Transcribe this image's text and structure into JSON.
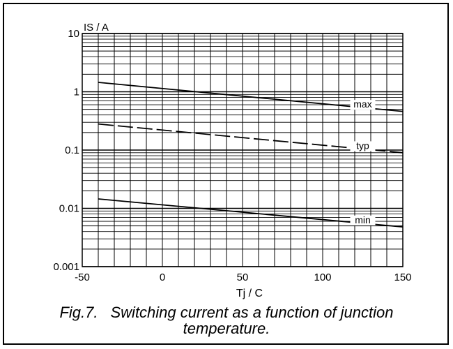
{
  "chart_data": {
    "type": "line",
    "x_scale": "linear",
    "y_scale": "log",
    "xlim": [
      -50,
      150
    ],
    "ylim": [
      0.001,
      10
    ],
    "x_ticks": [
      -50,
      0,
      50,
      100,
      150
    ],
    "x_tick_labels": [
      "-50",
      "0",
      "50",
      "100",
      "150"
    ],
    "y_ticks": [
      0.001,
      0.01,
      0.1,
      1,
      10
    ],
    "y_tick_labels": [
      "0.001",
      "0.01",
      "0.1",
      "1",
      "10"
    ],
    "xlabel": "Tj / C",
    "ylabel": "IS / A",
    "grid": true,
    "series": [
      {
        "name": "max",
        "style": "solid",
        "x": [
          -40,
          150
        ],
        "y": [
          1.45,
          0.46
        ]
      },
      {
        "name": "typ",
        "style": "dashed",
        "x": [
          -40,
          150
        ],
        "y": [
          0.28,
          0.09
        ]
      },
      {
        "name": "min",
        "style": "solid",
        "x": [
          -40,
          150
        ],
        "y": [
          0.0145,
          0.0048
        ]
      }
    ],
    "series_label_x": 125
  },
  "caption": {
    "number": "Fig.7.",
    "line1": "Switching current as a function of junction",
    "line2": "temperature."
  }
}
